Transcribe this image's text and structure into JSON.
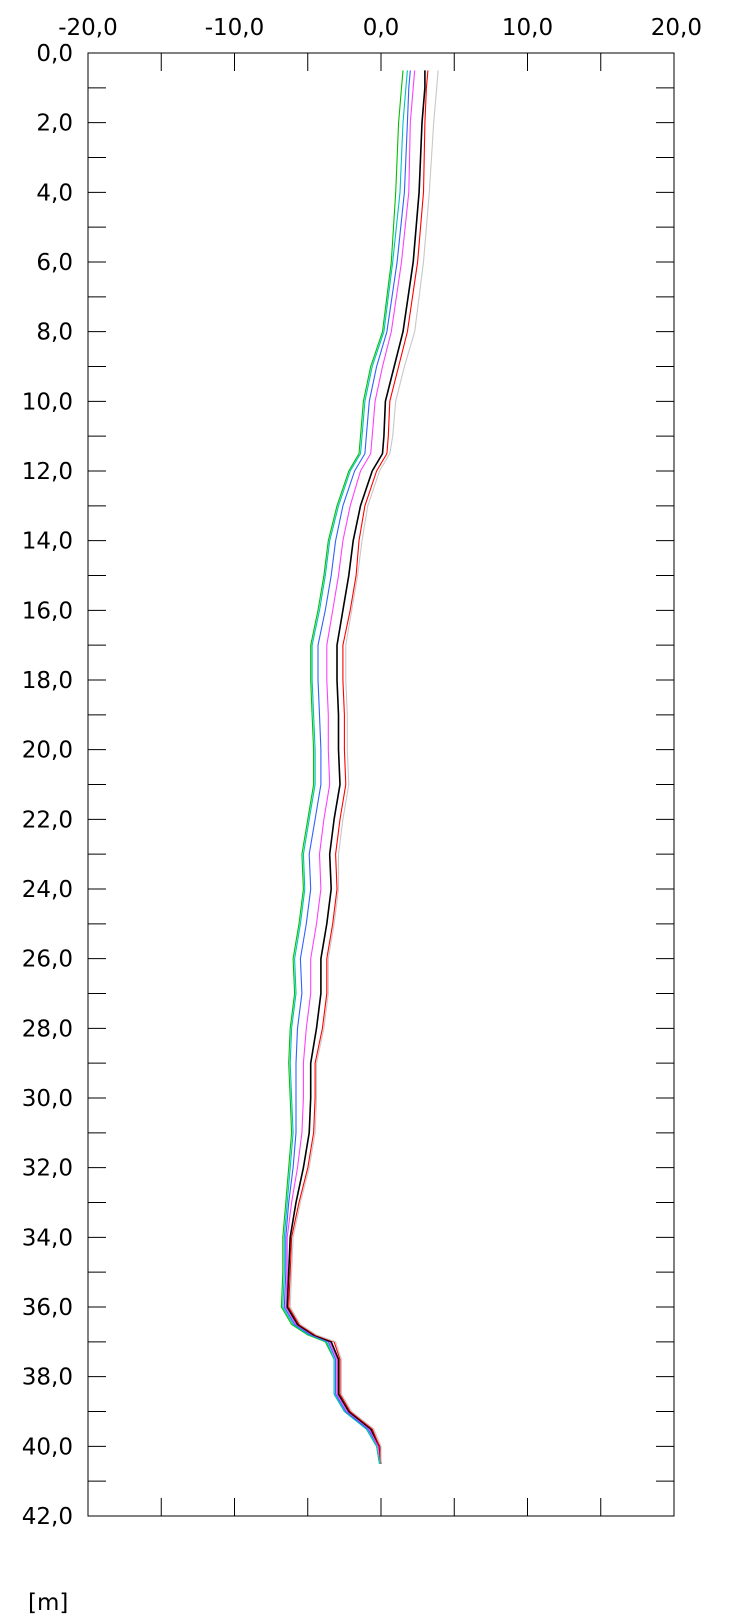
{
  "chart_data": {
    "type": "line",
    "orientation": "vertical-profile",
    "x_axis_position": "top",
    "xlim": [
      -20.0,
      20.0
    ],
    "ylim": [
      0.0,
      42.0
    ],
    "y_inverted": true,
    "x_ticks": [
      "-20,0",
      "-10,0",
      "0,0",
      "10,0",
      "20,0"
    ],
    "x_tick_values": [
      -20,
      -10,
      0,
      10,
      20
    ],
    "y_ticks": [
      "0,0",
      "2,0",
      "4,0",
      "6,0",
      "8,0",
      "10,0",
      "12,0",
      "14,0",
      "16,0",
      "18,0",
      "20,0",
      "22,0",
      "24,0",
      "26,0",
      "28,0",
      "30,0",
      "32,0",
      "34,0",
      "36,0",
      "38,0",
      "40,0",
      "42,0"
    ],
    "y_tick_values": [
      0,
      2,
      4,
      6,
      8,
      10,
      12,
      14,
      16,
      18,
      20,
      22,
      24,
      26,
      28,
      30,
      32,
      34,
      36,
      38,
      40,
      42
    ],
    "ylabel": "[m]",
    "xlabel": "",
    "grid": false,
    "legend": "none",
    "series": [
      {
        "color": "#00c000",
        "points": [
          [
            1.5,
            0.5
          ],
          [
            1.4,
            1.0
          ],
          [
            1.2,
            2.0
          ],
          [
            1.0,
            4.0
          ],
          [
            0.7,
            6.0
          ],
          [
            0.1,
            8.0
          ],
          [
            -0.7,
            9.0
          ],
          [
            -1.2,
            10.0
          ],
          [
            -1.4,
            11.0
          ],
          [
            -1.5,
            11.5
          ],
          [
            -2.2,
            12.0
          ],
          [
            -3.0,
            13.0
          ],
          [
            -3.6,
            14.0
          ],
          [
            -3.9,
            15.0
          ],
          [
            -4.3,
            16.0
          ],
          [
            -4.8,
            17.0
          ],
          [
            -4.8,
            18.0
          ],
          [
            -4.7,
            19.0
          ],
          [
            -4.6,
            20.0
          ],
          [
            -4.6,
            21.0
          ],
          [
            -5.0,
            22.0
          ],
          [
            -5.4,
            23.0
          ],
          [
            -5.3,
            24.0
          ],
          [
            -5.6,
            25.0
          ],
          [
            -6.0,
            26.0
          ],
          [
            -5.9,
            27.0
          ],
          [
            -6.2,
            28.0
          ],
          [
            -6.3,
            29.0
          ],
          [
            -6.2,
            30.0
          ],
          [
            -6.1,
            31.0
          ],
          [
            -6.3,
            32.0
          ],
          [
            -6.5,
            33.0
          ],
          [
            -6.7,
            34.0
          ],
          [
            -6.7,
            35.0
          ],
          [
            -6.8,
            36.0
          ],
          [
            -6.1,
            36.5
          ],
          [
            -5.0,
            36.8
          ],
          [
            -3.8,
            37.0
          ],
          [
            -3.2,
            37.5
          ],
          [
            -3.2,
            38.5
          ],
          [
            -2.5,
            39.0
          ],
          [
            -1.0,
            39.5
          ],
          [
            -0.3,
            40.0
          ],
          [
            -0.1,
            40.5
          ]
        ]
      },
      {
        "color": "#00c0c0",
        "points": [
          [
            1.8,
            0.5
          ],
          [
            1.7,
            1.0
          ],
          [
            1.5,
            2.0
          ],
          [
            1.3,
            4.0
          ],
          [
            0.8,
            6.0
          ],
          [
            0.2,
            8.0
          ],
          [
            -0.6,
            9.0
          ],
          [
            -1.1,
            10.0
          ],
          [
            -1.3,
            11.0
          ],
          [
            -1.4,
            11.5
          ],
          [
            -2.1,
            12.0
          ],
          [
            -2.9,
            13.0
          ],
          [
            -3.5,
            14.0
          ],
          [
            -3.8,
            15.0
          ],
          [
            -4.2,
            16.0
          ],
          [
            -4.7,
            17.0
          ],
          [
            -4.7,
            18.0
          ],
          [
            -4.6,
            19.0
          ],
          [
            -4.5,
            20.0
          ],
          [
            -4.5,
            21.0
          ],
          [
            -4.9,
            22.0
          ],
          [
            -5.3,
            23.0
          ],
          [
            -5.2,
            24.0
          ],
          [
            -5.5,
            25.0
          ],
          [
            -5.9,
            26.0
          ],
          [
            -5.8,
            27.0
          ],
          [
            -6.1,
            28.0
          ],
          [
            -6.2,
            29.0
          ],
          [
            -6.1,
            30.0
          ],
          [
            -6.0,
            31.0
          ],
          [
            -6.2,
            32.0
          ],
          [
            -6.4,
            33.0
          ],
          [
            -6.6,
            34.0
          ],
          [
            -6.6,
            35.0
          ],
          [
            -6.7,
            36.0
          ],
          [
            -6.0,
            36.5
          ],
          [
            -4.9,
            36.8
          ],
          [
            -3.7,
            37.0
          ],
          [
            -3.2,
            37.5
          ],
          [
            -3.2,
            38.5
          ],
          [
            -2.5,
            39.0
          ],
          [
            -1.0,
            39.5
          ],
          [
            -0.3,
            40.0
          ],
          [
            -0.1,
            40.5
          ]
        ]
      },
      {
        "color": "#3060ff",
        "points": [
          [
            2.0,
            0.5
          ],
          [
            1.9,
            1.0
          ],
          [
            1.8,
            2.0
          ],
          [
            1.6,
            4.0
          ],
          [
            1.1,
            6.0
          ],
          [
            0.4,
            8.0
          ],
          [
            -0.3,
            9.0
          ],
          [
            -0.8,
            10.0
          ],
          [
            -1.0,
            11.0
          ],
          [
            -1.1,
            11.5
          ],
          [
            -1.8,
            12.0
          ],
          [
            -2.6,
            13.0
          ],
          [
            -3.1,
            14.0
          ],
          [
            -3.4,
            15.0
          ],
          [
            -3.8,
            16.0
          ],
          [
            -4.3,
            17.0
          ],
          [
            -4.3,
            18.0
          ],
          [
            -4.2,
            19.0
          ],
          [
            -4.1,
            20.0
          ],
          [
            -4.1,
            21.0
          ],
          [
            -4.5,
            22.0
          ],
          [
            -4.9,
            23.0
          ],
          [
            -4.8,
            24.0
          ],
          [
            -5.1,
            25.0
          ],
          [
            -5.5,
            26.0
          ],
          [
            -5.4,
            27.0
          ],
          [
            -5.7,
            28.0
          ],
          [
            -5.8,
            29.0
          ],
          [
            -5.8,
            30.0
          ],
          [
            -5.8,
            31.0
          ],
          [
            -6.0,
            32.0
          ],
          [
            -6.3,
            33.0
          ],
          [
            -6.5,
            34.0
          ],
          [
            -6.5,
            35.0
          ],
          [
            -6.6,
            36.0
          ],
          [
            -5.9,
            36.5
          ],
          [
            -4.8,
            36.8
          ],
          [
            -3.6,
            37.0
          ],
          [
            -3.1,
            37.5
          ],
          [
            -3.1,
            38.5
          ],
          [
            -2.4,
            39.0
          ],
          [
            -0.9,
            39.5
          ],
          [
            -0.2,
            40.0
          ],
          [
            0.0,
            40.5
          ]
        ]
      },
      {
        "color": "#ff40ff",
        "points": [
          [
            2.3,
            0.5
          ],
          [
            2.2,
            1.0
          ],
          [
            2.0,
            2.0
          ],
          [
            1.9,
            4.0
          ],
          [
            1.4,
            6.0
          ],
          [
            0.7,
            8.0
          ],
          [
            0.1,
            9.0
          ],
          [
            -0.4,
            10.0
          ],
          [
            -0.6,
            11.0
          ],
          [
            -0.7,
            11.5
          ],
          [
            -1.4,
            12.0
          ],
          [
            -2.1,
            13.0
          ],
          [
            -2.6,
            14.0
          ],
          [
            -2.9,
            15.0
          ],
          [
            -3.3,
            16.0
          ],
          [
            -3.7,
            17.0
          ],
          [
            -3.7,
            18.0
          ],
          [
            -3.6,
            19.0
          ],
          [
            -3.6,
            20.0
          ],
          [
            -3.5,
            21.0
          ],
          [
            -3.9,
            22.0
          ],
          [
            -4.2,
            23.0
          ],
          [
            -4.1,
            24.0
          ],
          [
            -4.4,
            25.0
          ],
          [
            -4.8,
            26.0
          ],
          [
            -4.8,
            27.0
          ],
          [
            -5.1,
            28.0
          ],
          [
            -5.3,
            29.0
          ],
          [
            -5.3,
            30.0
          ],
          [
            -5.4,
            31.0
          ],
          [
            -5.7,
            32.0
          ],
          [
            -6.1,
            33.0
          ],
          [
            -6.4,
            34.0
          ],
          [
            -6.4,
            35.0
          ],
          [
            -6.5,
            36.0
          ],
          [
            -5.8,
            36.5
          ],
          [
            -4.7,
            36.8
          ],
          [
            -3.5,
            37.0
          ],
          [
            -3.0,
            37.5
          ],
          [
            -3.0,
            38.5
          ],
          [
            -2.3,
            39.0
          ],
          [
            -0.8,
            39.5
          ],
          [
            -0.2,
            40.0
          ],
          [
            0.0,
            40.5
          ]
        ]
      },
      {
        "color": "#000000",
        "points": [
          [
            3.0,
            0.5
          ],
          [
            3.0,
            1.0
          ],
          [
            2.8,
            2.0
          ],
          [
            2.6,
            4.0
          ],
          [
            2.2,
            6.0
          ],
          [
            1.5,
            8.0
          ],
          [
            0.9,
            9.0
          ],
          [
            0.3,
            10.0
          ],
          [
            0.2,
            11.0
          ],
          [
            0.1,
            11.5
          ],
          [
            -0.6,
            12.0
          ],
          [
            -1.4,
            13.0
          ],
          [
            -1.9,
            14.0
          ],
          [
            -2.2,
            15.0
          ],
          [
            -2.6,
            16.0
          ],
          [
            -3.0,
            17.0
          ],
          [
            -3.0,
            18.0
          ],
          [
            -2.9,
            19.0
          ],
          [
            -2.9,
            20.0
          ],
          [
            -2.8,
            21.0
          ],
          [
            -3.2,
            22.0
          ],
          [
            -3.5,
            23.0
          ],
          [
            -3.4,
            24.0
          ],
          [
            -3.7,
            25.0
          ],
          [
            -4.1,
            26.0
          ],
          [
            -4.1,
            27.0
          ],
          [
            -4.4,
            28.0
          ],
          [
            -4.8,
            29.0
          ],
          [
            -4.8,
            30.0
          ],
          [
            -4.9,
            31.0
          ],
          [
            -5.3,
            32.0
          ],
          [
            -5.8,
            33.0
          ],
          [
            -6.2,
            34.0
          ],
          [
            -6.3,
            35.0
          ],
          [
            -6.4,
            36.0
          ],
          [
            -5.7,
            36.5
          ],
          [
            -4.6,
            36.8
          ],
          [
            -3.4,
            37.0
          ],
          [
            -2.9,
            37.5
          ],
          [
            -2.9,
            38.5
          ],
          [
            -2.2,
            39.0
          ],
          [
            -0.7,
            39.5
          ],
          [
            -0.1,
            40.0
          ],
          [
            0.0,
            40.5
          ]
        ]
      },
      {
        "color": "#ff0000",
        "points": [
          [
            3.2,
            0.5
          ],
          [
            3.1,
            1.0
          ],
          [
            3.0,
            2.0
          ],
          [
            2.9,
            4.0
          ],
          [
            2.5,
            6.0
          ],
          [
            1.8,
            8.0
          ],
          [
            1.2,
            9.0
          ],
          [
            0.6,
            10.0
          ],
          [
            0.5,
            11.0
          ],
          [
            0.4,
            11.5
          ],
          [
            -0.3,
            12.0
          ],
          [
            -1.1,
            13.0
          ],
          [
            -1.5,
            14.0
          ],
          [
            -1.7,
            15.0
          ],
          [
            -2.1,
            16.0
          ],
          [
            -2.6,
            17.0
          ],
          [
            -2.6,
            18.0
          ],
          [
            -2.5,
            19.0
          ],
          [
            -2.5,
            20.0
          ],
          [
            -2.4,
            21.0
          ],
          [
            -2.8,
            22.0
          ],
          [
            -3.1,
            23.0
          ],
          [
            -3.0,
            24.0
          ],
          [
            -3.3,
            25.0
          ],
          [
            -3.7,
            26.0
          ],
          [
            -3.7,
            27.0
          ],
          [
            -4.0,
            28.0
          ],
          [
            -4.5,
            29.0
          ],
          [
            -4.5,
            30.0
          ],
          [
            -4.6,
            31.0
          ],
          [
            -5.0,
            32.0
          ],
          [
            -5.6,
            33.0
          ],
          [
            -6.1,
            34.0
          ],
          [
            -6.2,
            35.0
          ],
          [
            -6.3,
            36.0
          ],
          [
            -5.6,
            36.5
          ],
          [
            -4.5,
            36.8
          ],
          [
            -3.2,
            37.0
          ],
          [
            -2.8,
            37.5
          ],
          [
            -2.8,
            38.5
          ],
          [
            -2.1,
            39.0
          ],
          [
            -0.6,
            39.5
          ],
          [
            -0.1,
            40.0
          ],
          [
            0.0,
            40.5
          ]
        ]
      },
      {
        "color": "#c8c8c8",
        "points": [
          [
            3.9,
            0.5
          ],
          [
            3.8,
            1.0
          ],
          [
            3.6,
            2.0
          ],
          [
            3.3,
            4.0
          ],
          [
            2.9,
            6.0
          ],
          [
            2.3,
            8.0
          ],
          [
            1.6,
            9.0
          ],
          [
            1.0,
            10.0
          ],
          [
            0.8,
            11.0
          ],
          [
            0.6,
            11.5
          ],
          [
            -0.1,
            12.0
          ],
          [
            -0.9,
            13.0
          ],
          [
            -1.3,
            14.0
          ],
          [
            -1.6,
            15.0
          ],
          [
            -2.0,
            16.0
          ],
          [
            -2.4,
            17.0
          ],
          [
            -2.4,
            18.0
          ],
          [
            -2.3,
            19.0
          ],
          [
            -2.3,
            20.0
          ],
          [
            -2.2,
            21.0
          ],
          [
            -2.6,
            22.0
          ],
          [
            -2.9,
            23.0
          ],
          [
            -2.9,
            24.0
          ],
          [
            -3.2,
            25.0
          ],
          [
            -3.6,
            26.0
          ],
          [
            -3.6,
            27.0
          ],
          [
            -3.9,
            28.0
          ],
          [
            -4.4,
            29.0
          ],
          [
            -4.4,
            30.0
          ],
          [
            -4.5,
            31.0
          ],
          [
            -4.9,
            32.0
          ],
          [
            -5.5,
            33.0
          ],
          [
            -6.0,
            34.0
          ],
          [
            -6.1,
            35.0
          ],
          [
            -6.2,
            36.0
          ],
          [
            -5.5,
            36.5
          ],
          [
            -4.4,
            36.8
          ],
          [
            -3.1,
            37.0
          ],
          [
            -2.7,
            37.5
          ],
          [
            -2.7,
            38.5
          ],
          [
            -2.0,
            39.0
          ],
          [
            -0.5,
            39.5
          ],
          [
            0.0,
            40.0
          ],
          [
            0.0,
            40.5
          ]
        ]
      }
    ]
  }
}
